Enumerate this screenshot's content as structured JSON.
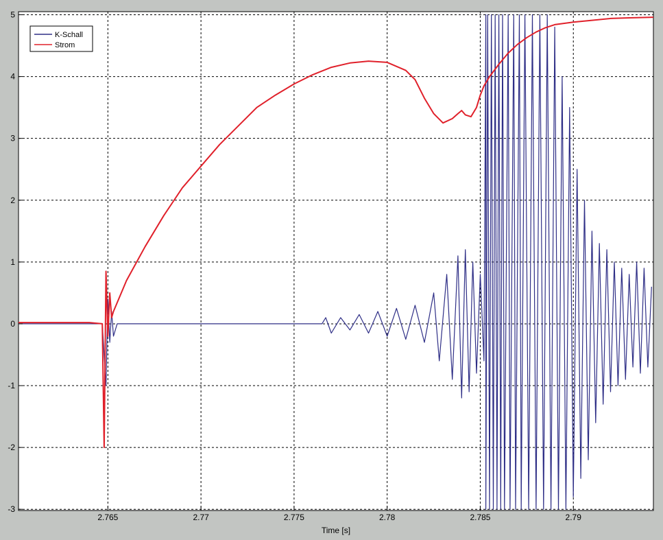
{
  "chart_data": {
    "type": "line",
    "title": "",
    "xlabel": "Time [s]",
    "ylabel": "",
    "xlim": [
      2.7602,
      2.7943
    ],
    "ylim": [
      -3.02,
      5.05
    ],
    "x_ticks": [
      2.765,
      2.77,
      2.775,
      2.78,
      2.785,
      2.79
    ],
    "x_tick_labels": [
      "2.765",
      "2.77",
      "2.775",
      "2.78",
      "2.785",
      "2.79"
    ],
    "y_ticks": [
      -3,
      -2,
      -1,
      0,
      1,
      2,
      3,
      4,
      5
    ],
    "y_tick_labels": [
      "-3",
      "-2",
      "-1",
      "0",
      "1",
      "2",
      "3",
      "4",
      "5"
    ],
    "grid": true,
    "legend_position": "top-left",
    "series": [
      {
        "name": "K-Schall",
        "color": "#2e2e86",
        "x": [
          2.7602,
          2.7647,
          2.7649,
          2.765,
          2.7651,
          2.7652,
          2.7653,
          2.7655,
          2.766,
          2.7765,
          2.7767,
          2.777,
          2.7775,
          2.778,
          2.7785,
          2.779,
          2.7795,
          2.78,
          2.7805,
          2.781,
          2.7815,
          2.782,
          2.7825,
          2.7828,
          2.7832,
          2.7835,
          2.7838,
          2.784,
          2.7842,
          2.7844,
          2.7846,
          2.7848,
          2.785,
          2.7852,
          2.7853,
          2.7853,
          2.7854,
          2.7855,
          2.7856,
          2.7857,
          2.7858,
          2.7859,
          2.786,
          2.7861,
          2.7862,
          2.7863,
          2.7865,
          2.7866,
          2.7868,
          2.7869,
          2.7871,
          2.7872,
          2.7874,
          2.7876,
          2.7878,
          2.788,
          2.7882,
          2.7884,
          2.7886,
          2.7888,
          2.789,
          2.7892,
          2.7894,
          2.7896,
          2.7898,
          2.79,
          2.7902,
          2.7904,
          2.7906,
          2.7908,
          2.791,
          2.7912,
          2.7914,
          2.7916,
          2.7918,
          2.792,
          2.7922,
          2.7924,
          2.7926,
          2.7928,
          2.793,
          2.7932,
          2.7934,
          2.7936,
          2.7938,
          2.794,
          2.7942
        ],
        "y": [
          0.0,
          0.0,
          -1.0,
          0.4,
          -0.3,
          0.2,
          -0.2,
          0.0,
          0.0,
          0.0,
          0.1,
          -0.15,
          0.1,
          -0.1,
          0.15,
          -0.15,
          0.2,
          -0.2,
          0.25,
          -0.25,
          0.3,
          -0.3,
          0.5,
          -0.6,
          0.8,
          -0.9,
          1.1,
          -1.2,
          1.2,
          -1.1,
          1.0,
          -0.8,
          0.8,
          -0.6,
          5.0,
          -3.0,
          5.0,
          -3.0,
          5.0,
          -3.0,
          5.0,
          -3.0,
          5.0,
          -3.0,
          5.0,
          -3.0,
          5.0,
          -3.0,
          5.0,
          -3.0,
          5.0,
          -3.0,
          5.0,
          -3.0,
          5.0,
          -3.0,
          5.0,
          -3.0,
          5.0,
          -3.0,
          4.8,
          -3.0,
          4.0,
          -3.0,
          3.5,
          -2.8,
          2.5,
          -2.5,
          2.0,
          -2.2,
          1.5,
          -1.6,
          1.3,
          -1.3,
          1.2,
          -1.1,
          1.0,
          -1.0,
          0.9,
          -0.9,
          0.8,
          -0.7,
          1.0,
          -0.8,
          0.9,
          -0.7,
          0.6
        ]
      },
      {
        "name": "Strom",
        "color": "#e0202a",
        "x": [
          2.7602,
          2.764,
          2.7647,
          2.7648,
          2.7649,
          2.765,
          2.7651,
          2.7652,
          2.7653,
          2.766,
          2.767,
          2.768,
          2.769,
          2.77,
          2.771,
          2.772,
          2.773,
          2.774,
          2.775,
          2.776,
          2.777,
          2.778,
          2.779,
          2.78,
          2.781,
          2.7815,
          2.782,
          2.7825,
          2.783,
          2.7835,
          2.7838,
          2.784,
          2.7842,
          2.7845,
          2.7848,
          2.785,
          2.7852,
          2.7855,
          2.786,
          2.7865,
          2.787,
          2.7875,
          2.788,
          2.7885,
          2.789,
          2.79,
          2.791,
          2.792,
          2.793,
          2.7943
        ],
        "y": [
          0.02,
          0.02,
          0.0,
          -2.0,
          0.85,
          -0.2,
          0.5,
          0.1,
          0.2,
          0.7,
          1.25,
          1.75,
          2.2,
          2.55,
          2.9,
          3.2,
          3.5,
          3.7,
          3.88,
          4.03,
          4.15,
          4.22,
          4.25,
          4.23,
          4.1,
          3.95,
          3.65,
          3.4,
          3.25,
          3.32,
          3.4,
          3.45,
          3.38,
          3.35,
          3.5,
          3.7,
          3.85,
          4.0,
          4.2,
          4.38,
          4.52,
          4.63,
          4.72,
          4.79,
          4.84,
          4.88,
          4.91,
          4.94,
          4.95,
          4.96
        ]
      }
    ]
  }
}
